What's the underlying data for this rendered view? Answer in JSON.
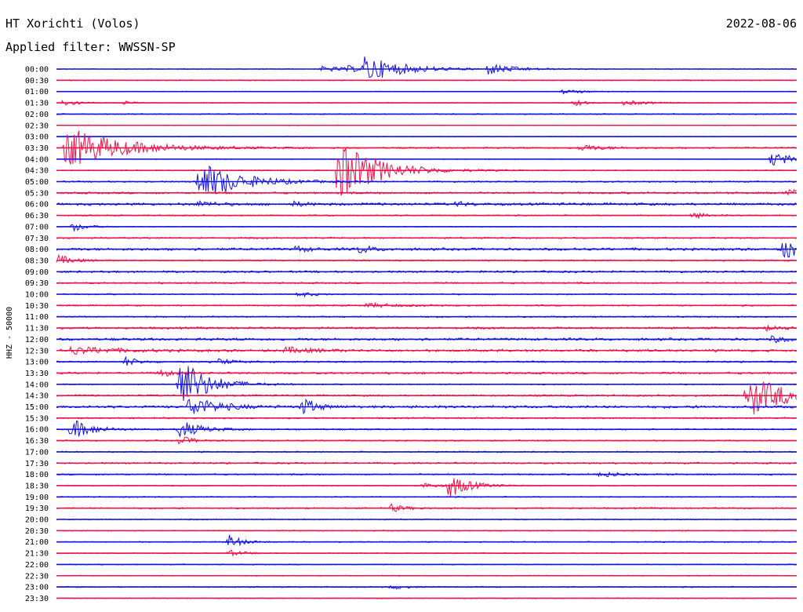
{
  "header": {
    "station": "HT Xorichti (Volos)",
    "date": "2022-08-06",
    "filter": "Applied filter: WWSSN-SP"
  },
  "colors": {
    "blue": "#1414e6",
    "red": "#f0144b"
  },
  "chart_data": {
    "type": "line",
    "ylabel": "HHZ - 50000",
    "rows": [
      "00:00",
      "00:30",
      "01:00",
      "01:30",
      "02:00",
      "02:30",
      "03:00",
      "03:30",
      "04:00",
      "04:30",
      "05:00",
      "05:30",
      "06:00",
      "06:30",
      "07:00",
      "07:30",
      "08:00",
      "08:30",
      "09:00",
      "09:30",
      "10:00",
      "10:30",
      "11:00",
      "11:30",
      "12:00",
      "12:30",
      "13:00",
      "13:30",
      "14:00",
      "14:30",
      "15:00",
      "15:30",
      "16:00",
      "16:30",
      "17:00",
      "17:30",
      "18:00",
      "18:30",
      "19:00",
      "19:30",
      "20:00",
      "20:30",
      "21:00",
      "21:30",
      "22:00",
      "22:30",
      "23:00",
      "23:30"
    ],
    "row_minutes": 30,
    "series_colors": [
      "blue",
      "red"
    ],
    "noise_level": [
      0.5,
      0.6,
      0.4,
      0.5,
      0.7,
      0.4,
      0.4,
      1.0,
      0.4,
      0.6,
      0.9,
      1.2,
      1.6,
      0.8,
      0.5,
      1.0,
      1.6,
      0.9,
      1.2,
      1.0,
      0.8,
      0.9,
      0.9,
      1.3,
      1.6,
      1.5,
      1.0,
      1.2,
      0.7,
      1.1,
      1.6,
      0.9,
      0.9,
      0.8,
      0.8,
      1.0,
      0.9,
      0.6,
      0.7,
      0.9,
      0.7,
      0.6,
      0.7,
      0.6,
      0.6,
      0.5,
      0.7,
      0.6
    ],
    "events": [
      {
        "row": 0,
        "minute": 10.8,
        "amplitude": 4,
        "duration": 2
      },
      {
        "row": 0,
        "minute": 11.8,
        "amplitude": 3,
        "duration": 1
      },
      {
        "row": 0,
        "minute": 12.5,
        "amplitude": 16,
        "duration": 3
      },
      {
        "row": 0,
        "minute": 17.5,
        "amplitude": 7,
        "duration": 2
      },
      {
        "row": 2,
        "minute": 20.5,
        "amplitude": 3,
        "duration": 1.5
      },
      {
        "row": 3,
        "minute": 0.3,
        "amplitude": 5,
        "duration": 1
      },
      {
        "row": 3,
        "minute": 2.8,
        "amplitude": 3,
        "duration": 0.5
      },
      {
        "row": 3,
        "minute": 21.0,
        "amplitude": 4,
        "duration": 1
      },
      {
        "row": 3,
        "minute": 23.0,
        "amplitude": 3,
        "duration": 2
      },
      {
        "row": 7,
        "minute": 0.4,
        "amplitude": 28,
        "duration": 4
      },
      {
        "row": 7,
        "minute": 21.2,
        "amplitude": 4,
        "duration": 2
      },
      {
        "row": 8,
        "minute": 29.0,
        "amplitude": 10,
        "duration": 1.5
      },
      {
        "row": 9,
        "minute": 11.4,
        "amplitude": 40,
        "duration": 3
      },
      {
        "row": 10,
        "minute": 5.8,
        "amplitude": 26,
        "duration": 3
      },
      {
        "row": 11,
        "minute": 29.5,
        "amplitude": 5,
        "duration": 2
      },
      {
        "row": 12,
        "minute": 5.8,
        "amplitude": 4,
        "duration": 1
      },
      {
        "row": 12,
        "minute": 9.6,
        "amplitude": 3,
        "duration": 1
      },
      {
        "row": 12,
        "minute": 16.2,
        "amplitude": 3,
        "duration": 1
      },
      {
        "row": 13,
        "minute": 25.8,
        "amplitude": 4,
        "duration": 1
      },
      {
        "row": 14,
        "minute": 0.7,
        "amplitude": 6,
        "duration": 1
      },
      {
        "row": 16,
        "minute": 9.7,
        "amplitude": 4,
        "duration": 1
      },
      {
        "row": 16,
        "minute": 12.3,
        "amplitude": 5,
        "duration": 1
      },
      {
        "row": 16,
        "minute": 29.5,
        "amplitude": 14,
        "duration": 1.5
      },
      {
        "row": 17,
        "minute": 0.1,
        "amplitude": 7,
        "duration": 1
      },
      {
        "row": 20,
        "minute": 9.8,
        "amplitude": 4,
        "duration": 1
      },
      {
        "row": 21,
        "minute": 12.6,
        "amplitude": 3,
        "duration": 2
      },
      {
        "row": 23,
        "minute": 28.8,
        "amplitude": 4,
        "duration": 1
      },
      {
        "row": 24,
        "minute": 29.0,
        "amplitude": 4,
        "duration": 1
      },
      {
        "row": 25,
        "minute": 0.6,
        "amplitude": 5,
        "duration": 3
      },
      {
        "row": 25,
        "minute": 9.3,
        "amplitude": 4,
        "duration": 2
      },
      {
        "row": 26,
        "minute": 2.8,
        "amplitude": 6,
        "duration": 1
      },
      {
        "row": 26,
        "minute": 6.6,
        "amplitude": 4,
        "duration": 1
      },
      {
        "row": 27,
        "minute": 4.2,
        "amplitude": 5,
        "duration": 1
      },
      {
        "row": 28,
        "minute": 5.0,
        "amplitude": 36,
        "duration": 2
      },
      {
        "row": 29,
        "minute": 28.0,
        "amplitude": 28,
        "duration": 3
      },
      {
        "row": 30,
        "minute": 5.4,
        "amplitude": 14,
        "duration": 2
      },
      {
        "row": 30,
        "minute": 10.0,
        "amplitude": 12,
        "duration": 1
      },
      {
        "row": 32,
        "minute": 0.6,
        "amplitude": 14,
        "duration": 1.5
      },
      {
        "row": 32,
        "minute": 5.0,
        "amplitude": 12,
        "duration": 1.5
      },
      {
        "row": 33,
        "minute": 5.0,
        "amplitude": 6,
        "duration": 1
      },
      {
        "row": 36,
        "minute": 22.0,
        "amplitude": 4,
        "duration": 1.5
      },
      {
        "row": 37,
        "minute": 14.8,
        "amplitude": 4,
        "duration": 1
      },
      {
        "row": 37,
        "minute": 15.9,
        "amplitude": 16,
        "duration": 1.5
      },
      {
        "row": 39,
        "minute": 13.6,
        "amplitude": 5,
        "duration": 1
      },
      {
        "row": 42,
        "minute": 7.0,
        "amplitude": 9,
        "duration": 1
      },
      {
        "row": 43,
        "minute": 7.0,
        "amplitude": 4,
        "duration": 1
      },
      {
        "row": 46,
        "minute": 13.6,
        "amplitude": 3,
        "duration": 1
      }
    ]
  }
}
